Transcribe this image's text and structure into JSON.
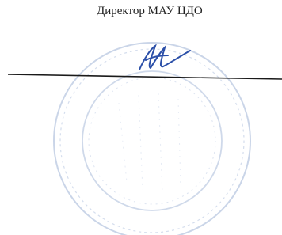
{
  "header": {
    "title": "Директор МАУ ЦДО"
  }
}
